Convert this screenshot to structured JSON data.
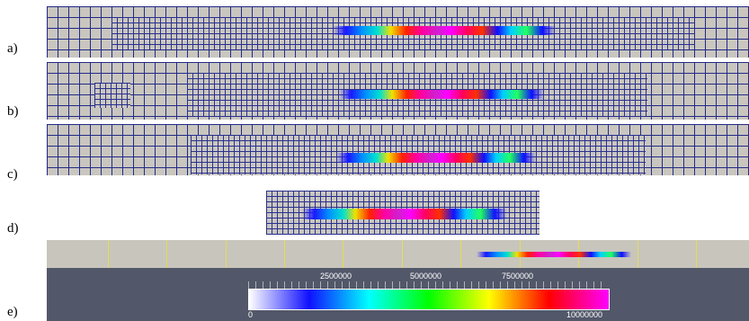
{
  "panels": [
    {
      "label": "a)"
    },
    {
      "label": "b)"
    },
    {
      "label": "c)"
    },
    {
      "label": "d)"
    },
    {
      "label": "e)"
    }
  ],
  "colormap": {
    "name": "rainbow",
    "stops": [
      "#ffffff",
      "#1010ff",
      "#00ffff",
      "#00ff00",
      "#ffff00",
      "#ff0000",
      "#ff00ff"
    ],
    "field_stops": [
      "#1a1aff",
      "#0090ff",
      "#00e0d0",
      "#f0e000",
      "#ff2000",
      "#ff00a0",
      "#d020d0",
      "#ff00ff",
      "#ff0060",
      "#ff3000",
      "#1010ff",
      "#00d0ff",
      "#20ff60",
      "#1010ff"
    ],
    "mesh_line_color": "#222a88",
    "background": "#c9c6bf"
  },
  "colorbar": {
    "min_label": "0",
    "max_label": "10000000",
    "tick_labels": [
      "2500000",
      "5000000",
      "7500000"
    ]
  }
}
